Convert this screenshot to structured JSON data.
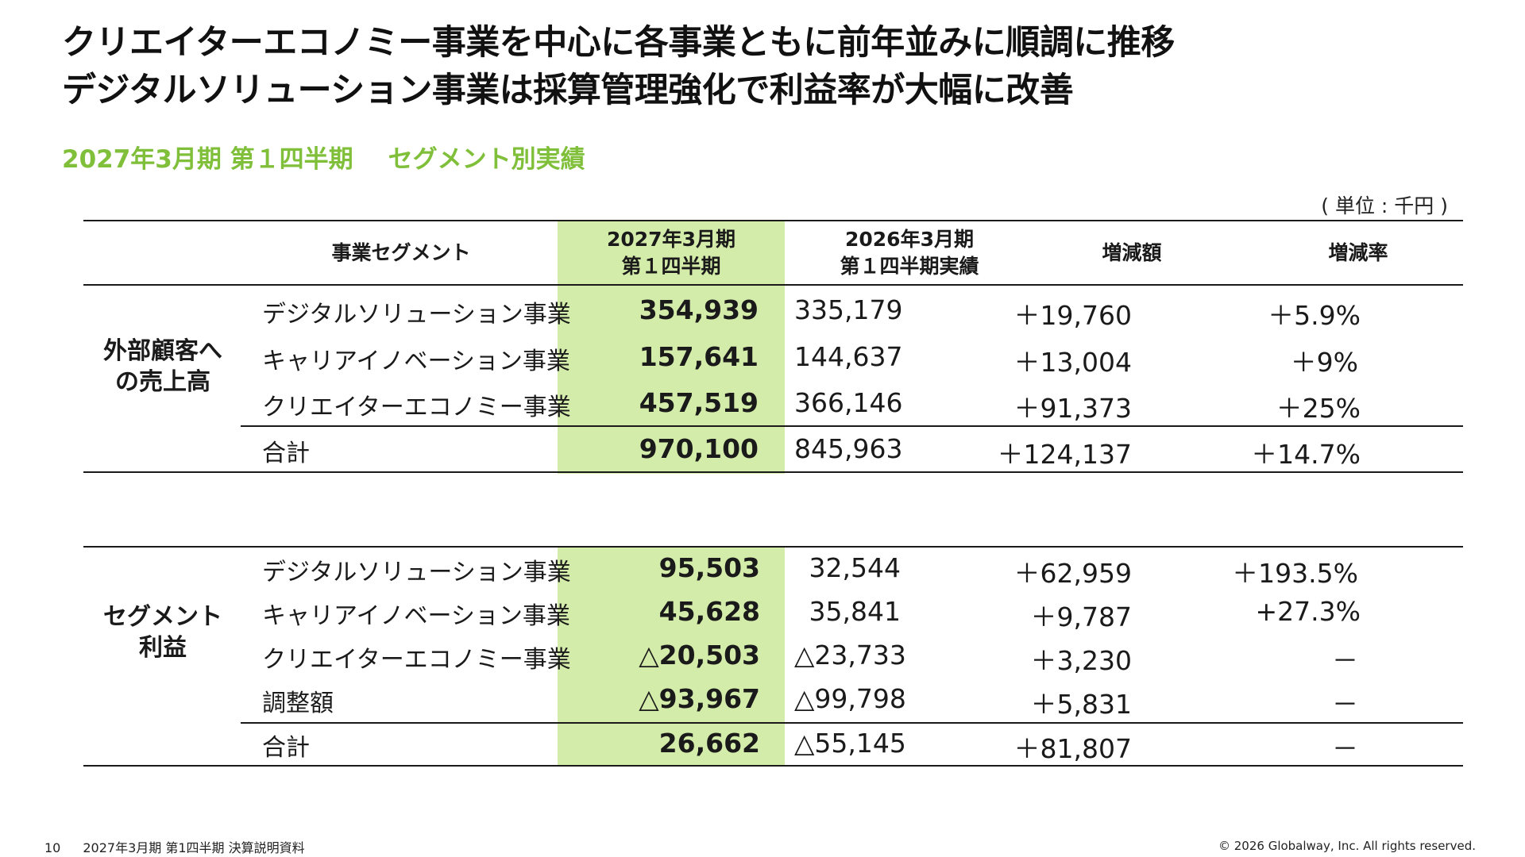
{
  "headline": {
    "line1": "クリエイターエコノミー事業を中心に各事業ともに前年並みに順調に推移",
    "line2": "デジタルソリューション事業は採算管理強化で利益率が大幅に改善"
  },
  "subtitle": {
    "period": "2027年3月期 第１四半期",
    "section": "セグメント別実績"
  },
  "unit_note": "( 単位 : 千円 )",
  "columns": {
    "segment": "事業セグメント",
    "current_line1": "2027年3月期",
    "current_line2": "第１四半期",
    "prior_line1": "2026年3月期",
    "prior_line2": "第１四半期実績",
    "change": "増減額",
    "change_rate": "増減率"
  },
  "sales": {
    "group_line1": "外部顧客へ",
    "group_line2": "の売上高",
    "rows": [
      {
        "segment": "デジタルソリューション事業",
        "current": "354,939",
        "prior": "335,179",
        "change": "＋19,760",
        "rate": "＋5.9%"
      },
      {
        "segment": "キャリアイノベーション事業",
        "current": "157,641",
        "prior": "144,637",
        "change": "＋13,004",
        "rate": "＋9%"
      },
      {
        "segment": "クリエイターエコノミー事業",
        "current": "457,519",
        "prior": "366,146",
        "change": "＋91,373",
        "rate": "＋25%"
      },
      {
        "segment": "合計",
        "current": "970,100",
        "prior": "845,963",
        "change": "＋124,137",
        "rate": "＋14.7%"
      }
    ]
  },
  "profit": {
    "group_line1": "セグメント",
    "group_line2": "利益",
    "rows": [
      {
        "segment": "デジタルソリューション事業",
        "current": "95,503",
        "prior": "32,544",
        "change": "＋62,959",
        "rate": "＋193.5%"
      },
      {
        "segment": "キャリアイノベーション事業",
        "current": "45,628",
        "prior": "35,841",
        "change": "＋9,787",
        "rate": "+27.3%"
      },
      {
        "segment": "クリエイターエコノミー事業",
        "current": "△20,503",
        "prior": "△23,733",
        "change": "＋3,230",
        "rate": "－"
      },
      {
        "segment": "調整額",
        "current": "△93,967",
        "prior": "△99,798",
        "change": "＋5,831",
        "rate": "－"
      },
      {
        "segment": "合計",
        "current": "26,662",
        "prior": "△55,145",
        "change": "＋81,807",
        "rate": "－"
      }
    ]
  },
  "footer": {
    "page_number": "10",
    "doc_title": "2027年3月期 第1四半期 決算説明資料",
    "copyright": "© 2026 Globalway, Inc. All rights reserved."
  },
  "colors": {
    "accent_green": "#7fbf3a",
    "highlight_column": "#d4ecaa"
  }
}
